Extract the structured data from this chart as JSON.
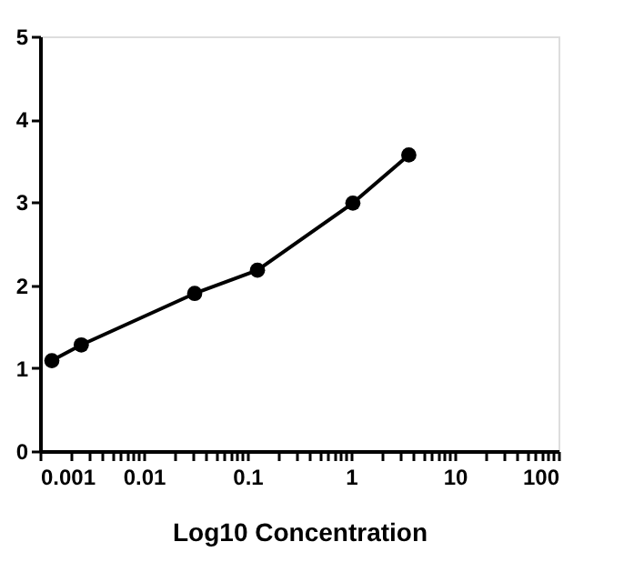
{
  "chart_data": {
    "type": "line",
    "xlabel": "Log10 Concentration",
    "log": "x",
    "marker": "circle",
    "line_style": "solid",
    "grid": false,
    "x": [
      0.0013,
      0.0025,
      0.031,
      0.125,
      1.04,
      3.6
    ],
    "series": [
      {
        "color": "#000000",
        "values": [
          1.09,
          1.28,
          1.9,
          2.18,
          2.99,
          3.57
        ]
      }
    ],
    "xlim": [
      0.001,
      100
    ],
    "ylim": [
      0,
      5
    ],
    "yticks": [
      0,
      1,
      2,
      3,
      4,
      5
    ],
    "xticks": [
      {
        "value": 0.001,
        "label": "0.001"
      },
      {
        "value": 0.002,
        "label": null
      },
      {
        "value": 0.003,
        "label": null
      },
      {
        "value": 0.004,
        "label": null
      },
      {
        "value": 0.005,
        "label": null
      },
      {
        "value": 0.006,
        "label": null
      },
      {
        "value": 0.007,
        "label": null
      },
      {
        "value": 0.008,
        "label": null
      },
      {
        "value": 0.009,
        "label": null
      },
      {
        "value": 0.01,
        "label": "0.01"
      },
      {
        "value": 0.02,
        "label": null
      },
      {
        "value": 0.03,
        "label": null
      },
      {
        "value": 0.04,
        "label": null
      },
      {
        "value": 0.05,
        "label": null
      },
      {
        "value": 0.06,
        "label": null
      },
      {
        "value": 0.07,
        "label": null
      },
      {
        "value": 0.08,
        "label": null
      },
      {
        "value": 0.09,
        "label": null
      },
      {
        "value": 0.1,
        "label": "0.1"
      },
      {
        "value": 0.2,
        "label": null
      },
      {
        "value": 0.3,
        "label": null
      },
      {
        "value": 0.4,
        "label": null
      },
      {
        "value": 0.5,
        "label": null
      },
      {
        "value": 0.6,
        "label": null
      },
      {
        "value": 0.7,
        "label": null
      },
      {
        "value": 0.8,
        "label": null
      },
      {
        "value": 0.9,
        "label": null
      },
      1,
      {
        "value": 2,
        "label": null
      },
      {
        "value": 3,
        "label": null
      },
      {
        "value": 4,
        "label": null
      },
      {
        "value": 5,
        "label": null
      },
      {
        "value": 6,
        "label": null
      },
      {
        "value": 7,
        "label": null
      },
      {
        "value": 8,
        "label": null
      },
      {
        "value": 9,
        "label": null
      },
      10,
      {
        "value": 20,
        "label": null
      },
      {
        "value": 30,
        "label": null
      },
      {
        "value": 40,
        "label": null
      },
      {
        "value": 50,
        "label": null
      },
      {
        "value": 60,
        "label": null
      },
      {
        "value": 70,
        "label": null
      },
      {
        "value": 80,
        "label": null
      },
      {
        "value": 90,
        "label": null
      },
      100
    ]
  }
}
